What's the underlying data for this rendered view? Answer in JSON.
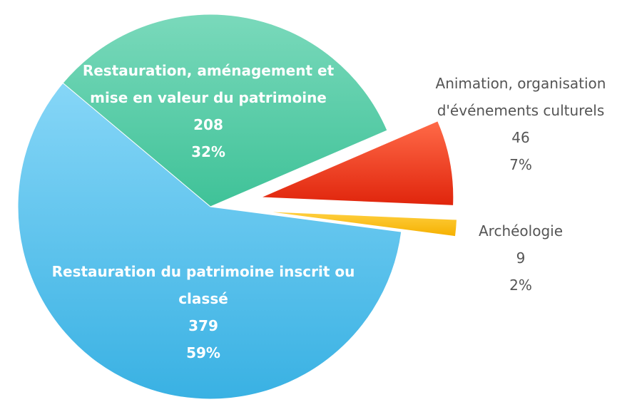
{
  "chart_data": {
    "type": "pie",
    "categories": [
      "Restauration, aménagement et mise en valeur du patrimoine",
      "Animation, organisation d'événements culturels",
      "Archéologie",
      "Restauration du patrimoine inscrit ou classé"
    ],
    "values": [
      208,
      46,
      9,
      379
    ],
    "percentages": [
      32,
      7,
      2,
      59
    ],
    "percentage_labels": [
      "32%",
      "7%",
      "2%",
      "59%"
    ],
    "colors": [
      "#4cc9a2",
      "#ee3a1c",
      "#ffc000",
      "#4cbdeb"
    ]
  }
}
